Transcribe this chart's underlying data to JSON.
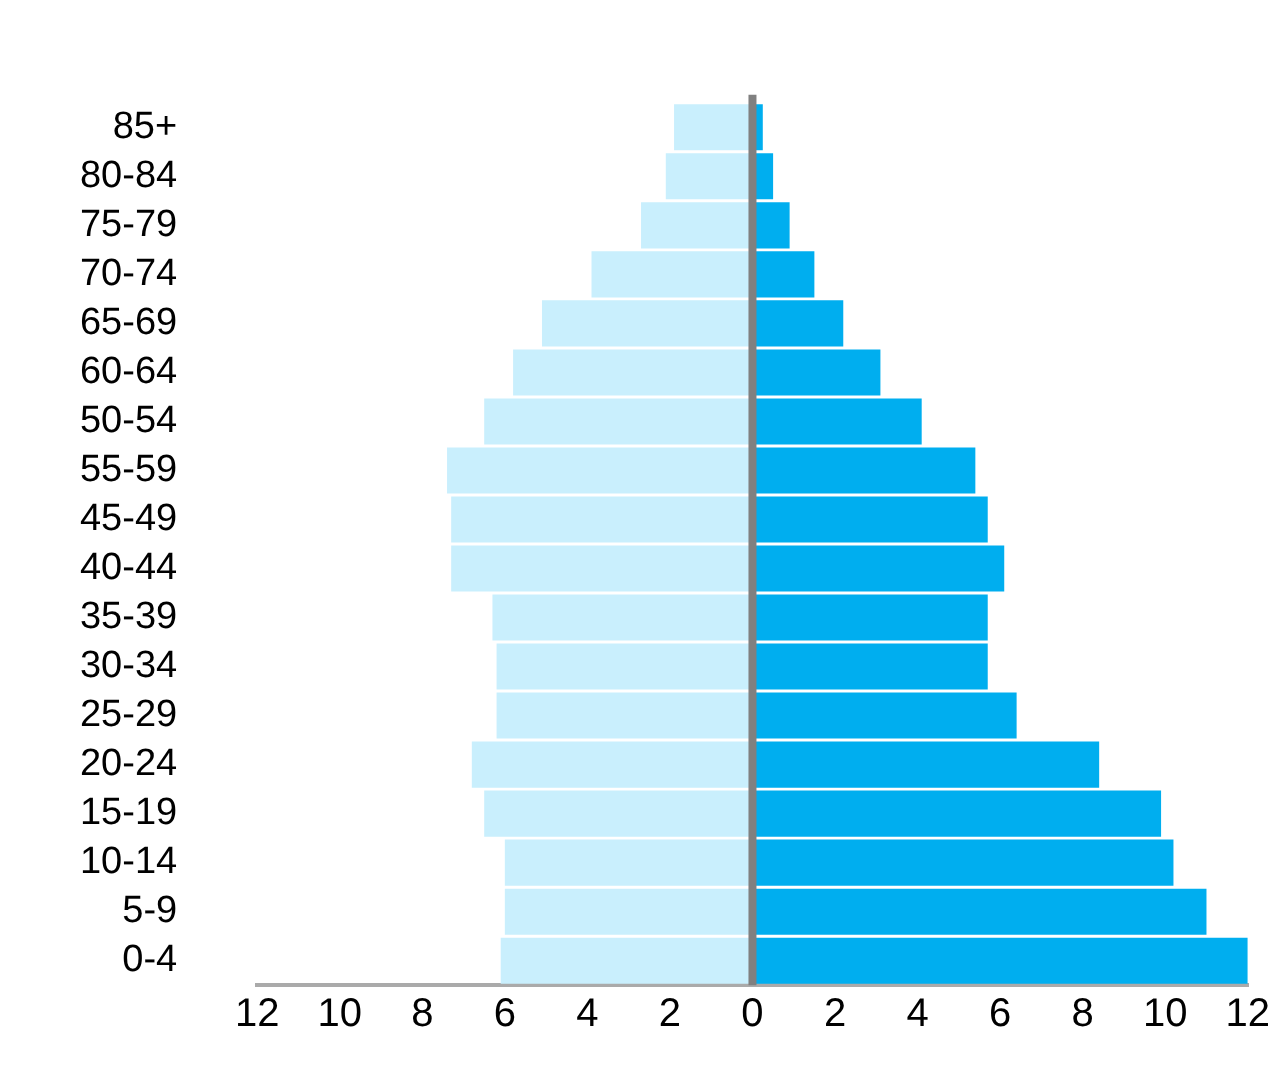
{
  "chart_data": {
    "type": "bar",
    "orientation": "horizontal",
    "stacked": true,
    "categories": [
      "85+",
      "80-84",
      "75-79",
      "70-74",
      "65-69",
      "60-64",
      "50-54",
      "55-59",
      "45-49",
      "40-44",
      "35-39",
      "30-34",
      "25-29",
      "20-24",
      "15-19",
      "10-14",
      "5-9",
      "0-4"
    ],
    "series": [
      {
        "color": "#c9effd",
        "values": [
          -1.9,
          -2.1,
          -2.7,
          -3.9,
          -5.1,
          -5.8,
          -6.5,
          -7.4,
          -7.3,
          -7.3,
          -6.3,
          -6.2,
          -6.2,
          -6.8,
          -6.5,
          -6.0,
          -6.0,
          -6.1
        ]
      },
      {
        "color": "#00aeef",
        "values": [
          0.25,
          0.5,
          0.9,
          1.5,
          2.2,
          3.1,
          4.1,
          5.4,
          5.7,
          6.1,
          5.7,
          5.7,
          6.4,
          8.4,
          9.9,
          10.2,
          11.0,
          12.0
        ]
      }
    ],
    "xlim": [
      -12,
      12
    ],
    "xticks": [
      {
        "value": -12,
        "label": "12"
      },
      {
        "value": -10,
        "label": "10"
      },
      {
        "value": -8,
        "label": "8"
      },
      {
        "value": -6,
        "label": "6"
      },
      {
        "value": -4,
        "label": "4"
      },
      {
        "value": -2,
        "label": "2"
      },
      0,
      2,
      4,
      6,
      8,
      10,
      12
    ],
    "ref_lines": [
      {
        "axis": "x",
        "value": 0,
        "color": "#808080"
      }
    ],
    "grid": false,
    "legend": false
  }
}
